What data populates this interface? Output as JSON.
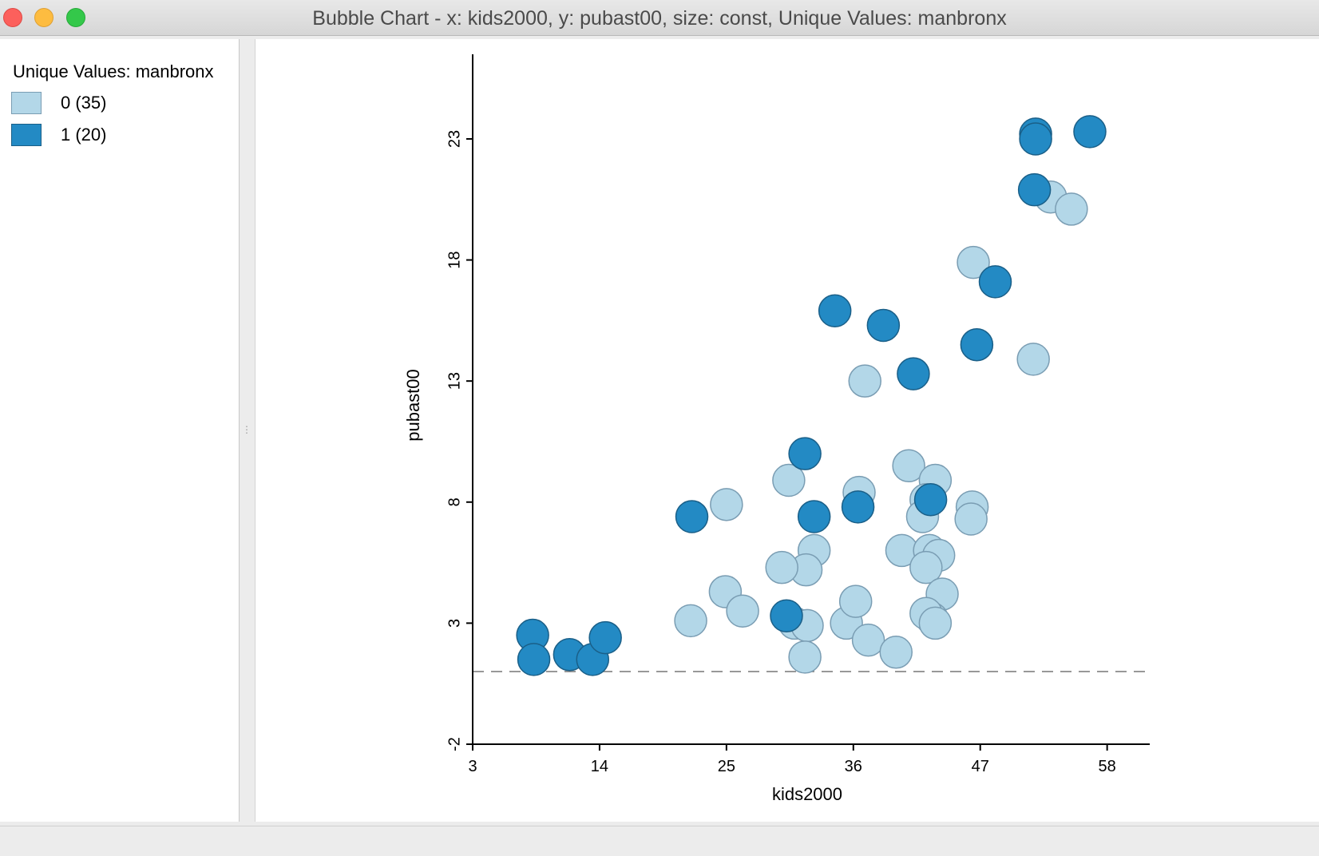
{
  "window": {
    "title": "Bubble Chart - x: kids2000, y: pubast00, size: const, Unique Values: manbronx"
  },
  "legend": {
    "title": "Unique Values: manbronx",
    "items": [
      {
        "label": "0 (35)",
        "color": "#b3d7e8",
        "border": "#7a9db3"
      },
      {
        "label": "1 (20)",
        "color": "#238ac4",
        "border": "#1a5f88"
      }
    ]
  },
  "colors": {
    "category_0": "#b3d7e8",
    "category_1": "#238ac4",
    "axis": "#000000",
    "reference_line": "#777777"
  },
  "chart_data": {
    "type": "scatter",
    "xlabel": "kids2000",
    "ylabel": "pubast00",
    "xlim": [
      3,
      61
    ],
    "ylim": [
      -2,
      26
    ],
    "xticks": [
      3,
      14,
      25,
      36,
      47,
      58
    ],
    "yticks": [
      -2,
      3,
      8,
      13,
      18,
      23
    ],
    "x_tick_labels": [
      "3",
      "14",
      "25",
      "36",
      "47",
      "58"
    ],
    "y_tick_labels": [
      "-2",
      "3",
      "8",
      "13",
      "18",
      "23"
    ],
    "reference_line": {
      "orientation": "horizontal",
      "y": 1.0,
      "style": "dashed"
    },
    "series": [
      {
        "name": "0 (35)",
        "color": "#b3d7e8",
        "points": [
          [
            46.4,
            17.9
          ],
          [
            53.1,
            20.6
          ],
          [
            54.9,
            20.1
          ],
          [
            51.6,
            13.9
          ],
          [
            37.0,
            13.0
          ],
          [
            25.0,
            7.9
          ],
          [
            30.4,
            8.9
          ],
          [
            36.5,
            8.4
          ],
          [
            40.8,
            9.5
          ],
          [
            43.1,
            8.9
          ],
          [
            42.3,
            8.1
          ],
          [
            42.0,
            7.4
          ],
          [
            46.3,
            7.8
          ],
          [
            46.2,
            7.3
          ],
          [
            40.2,
            6.0
          ],
          [
            42.6,
            6.0
          ],
          [
            43.4,
            5.8
          ],
          [
            42.3,
            5.3
          ],
          [
            32.6,
            6.0
          ],
          [
            31.9,
            5.2
          ],
          [
            29.8,
            5.3
          ],
          [
            24.9,
            4.3
          ],
          [
            26.4,
            3.5
          ],
          [
            21.9,
            3.1
          ],
          [
            30.9,
            3.0
          ],
          [
            32.0,
            2.9
          ],
          [
            35.4,
            3.0
          ],
          [
            36.2,
            3.9
          ],
          [
            37.3,
            2.3
          ],
          [
            43.7,
            4.2
          ],
          [
            42.8,
            3.2
          ],
          [
            42.3,
            3.4
          ],
          [
            39.7,
            1.8
          ],
          [
            31.8,
            1.6
          ],
          [
            43.1,
            3.0
          ]
        ]
      },
      {
        "name": "1 (20)",
        "color": "#238ac4",
        "points": [
          [
            51.8,
            23.2
          ],
          [
            51.8,
            23.0
          ],
          [
            56.5,
            23.3
          ],
          [
            51.7,
            20.9
          ],
          [
            48.3,
            17.1
          ],
          [
            34.4,
            15.9
          ],
          [
            38.6,
            15.3
          ],
          [
            46.7,
            14.5
          ],
          [
            41.2,
            13.3
          ],
          [
            31.8,
            10.0
          ],
          [
            22.0,
            7.4
          ],
          [
            32.6,
            7.4
          ],
          [
            36.4,
            7.8
          ],
          [
            42.7,
            8.1
          ],
          [
            30.2,
            3.3
          ],
          [
            8.2,
            2.5
          ],
          [
            8.3,
            1.5
          ],
          [
            11.4,
            1.7
          ],
          [
            13.4,
            1.5
          ],
          [
            14.5,
            2.4
          ]
        ]
      }
    ]
  }
}
